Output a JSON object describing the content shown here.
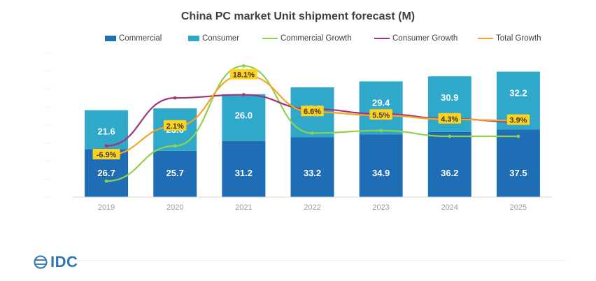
{
  "chart_data": {
    "type": "bar",
    "title": "China PC market Unit shipment forecast (M)",
    "categories": [
      "2019",
      "2020",
      "2021",
      "2022",
      "2023",
      "2024",
      "2025"
    ],
    "series": [
      {
        "name": "Commercial",
        "kind": "bar",
        "stack": "units",
        "color": "#1f6eb5",
        "values": [
          26.7,
          25.7,
          31.2,
          33.2,
          34.9,
          36.2,
          37.5
        ]
      },
      {
        "name": "Consumer",
        "kind": "bar",
        "stack": "units",
        "color": "#2fa8c9",
        "values": [
          21.6,
          23.6,
          26.0,
          27.8,
          29.4,
          30.9,
          32.2
        ]
      },
      {
        "name": "Commercial Growth",
        "kind": "line",
        "color": "#92d050",
        "unit": "%",
        "values": [
          -15.0,
          -4.0,
          21.0,
          0.0,
          0.8,
          -1.0,
          -1.0
        ]
      },
      {
        "name": "Consumer Growth",
        "kind": "line",
        "color": "#a0357f",
        "unit": "%",
        "values": [
          -4.0,
          11.0,
          12.0,
          7.5,
          6.0,
          4.5,
          3.5
        ]
      },
      {
        "name": "Total Growth",
        "kind": "line",
        "color": "#f5a623",
        "unit": "%",
        "values": [
          -6.9,
          2.1,
          18.1,
          6.6,
          5.5,
          4.3,
          3.9
        ],
        "data_labels": [
          "-6.9%",
          "2.1%",
          "18.1%",
          "6.6%",
          "5.5%",
          "4.3%",
          "3.9%"
        ]
      }
    ],
    "ylim": [
      0,
      80
    ],
    "y2lim": [
      -20,
      25
    ],
    "legend_position": "top",
    "grid": false
  },
  "brand": {
    "logo_text": "IDC"
  }
}
